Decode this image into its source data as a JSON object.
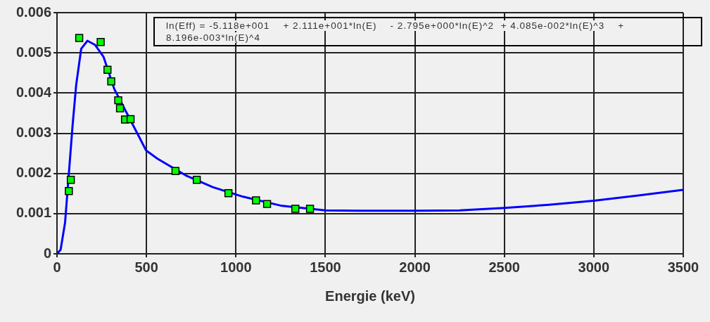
{
  "chart_data": {
    "type": "scatter",
    "xlabel": "Energie (keV)",
    "xlim": [
      0,
      3500
    ],
    "xticks": [
      0,
      500,
      1000,
      1500,
      2000,
      2500,
      3000,
      3500
    ],
    "ylim": [
      0,
      0.006
    ],
    "yticks": [
      0,
      0.001,
      0.002,
      0.003,
      0.004,
      0.005,
      0.006
    ],
    "grid": true,
    "legend": false,
    "annotations": [
      "ln(Eff) = -5.118e+001    + 2.111e+001*ln(E)    - 2.795e+000*ln(E)^2  + 4.085e-002*ln(E)^3    + 8.196e-003*ln(E)^4"
    ],
    "series": [
      {
        "type": "line",
        "color": "#0000ff",
        "marker": "none",
        "line_style": "solid",
        "x": [
          0,
          20,
          45,
          87,
          107,
          135,
          170,
          212,
          260,
          320,
          460,
          498,
          560,
          720,
          870,
          1040,
          1250,
          1500,
          1750,
          2000,
          2250,
          2500,
          2750,
          3000,
          3250,
          3500
        ],
        "values": [
          0,
          0.0001,
          0.00078,
          0.0032,
          0.0042,
          0.0051,
          0.0053,
          0.0052,
          0.0049,
          0.0041,
          0.0029,
          0.00257,
          0.00237,
          0.00195,
          0.00166,
          0.00142,
          0.0012,
          0.00108,
          0.00107,
          0.00107,
          0.00108,
          0.00114,
          0.00122,
          0.00132,
          0.00145,
          0.00159
        ]
      },
      {
        "type": "scatter",
        "color": "#00ff00",
        "marker": "square",
        "x": [
          66,
          77,
          124,
          244,
          282,
          303,
          342,
          352,
          380,
          411,
          662,
          781,
          958,
          1112,
          1174,
          1332,
          1414
        ],
        "values": [
          0.00156,
          0.00184,
          0.00537,
          0.00527,
          0.00458,
          0.00429,
          0.00382,
          0.00362,
          0.00334,
          0.00335,
          0.00206,
          0.00184,
          0.00151,
          0.00133,
          0.00124,
          0.00112,
          0.00112
        ]
      }
    ]
  }
}
